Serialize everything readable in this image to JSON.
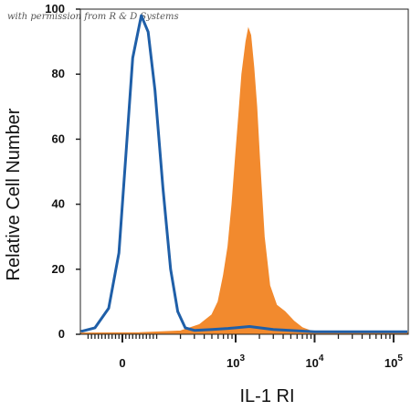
{
  "watermark": "with permission from R & D Systems",
  "chart_data": {
    "type": "area",
    "xlabel": "IL-1 RI",
    "ylabel": "Relative Cell Number",
    "xscale": "biexponential",
    "ylim": [
      0,
      100
    ],
    "y_ticks": [
      0,
      20,
      40,
      60,
      80,
      100
    ],
    "x_ticks": [
      {
        "base": "0",
        "exp": "",
        "value": 0
      },
      {
        "base": "10",
        "exp": "3",
        "value": 1000
      },
      {
        "base": "10",
        "exp": "4",
        "value": 10000
      },
      {
        "base": "10",
        "exp": "5",
        "value": 100000
      }
    ],
    "grid": false,
    "series": [
      {
        "style": "outline",
        "color": "#1f5fa8",
        "points": [
          [
            -800,
            0.8
          ],
          [
            -250,
            0.9
          ],
          [
            -80,
            2
          ],
          [
            -40,
            8
          ],
          [
            -10,
            25
          ],
          [
            10,
            55
          ],
          [
            30,
            85
          ],
          [
            55,
            98
          ],
          [
            75,
            93
          ],
          [
            95,
            75
          ],
          [
            120,
            45
          ],
          [
            150,
            20
          ],
          [
            185,
            7
          ],
          [
            230,
            2
          ],
          [
            300,
            1.2
          ],
          [
            500,
            1.5
          ],
          [
            800,
            1.8
          ],
          [
            1500,
            2.4
          ],
          [
            3000,
            1.5
          ],
          [
            10000,
            0.8
          ],
          [
            30000,
            0.8
          ],
          [
            100000,
            0.8
          ],
          [
            200000,
            0.8
          ]
        ]
      },
      {
        "style": "filled",
        "color": "#f28a2e",
        "points": [
          [
            -800,
            0.4
          ],
          [
            50,
            0.5
          ],
          [
            200,
            1
          ],
          [
            350,
            3
          ],
          [
            500,
            6
          ],
          [
            600,
            10
          ],
          [
            700,
            18
          ],
          [
            800,
            27
          ],
          [
            900,
            40
          ],
          [
            1000,
            55
          ],
          [
            1100,
            68
          ],
          [
            1200,
            80
          ],
          [
            1350,
            90
          ],
          [
            1450,
            94
          ],
          [
            1550,
            92
          ],
          [
            1700,
            82
          ],
          [
            1850,
            70
          ],
          [
            2000,
            55
          ],
          [
            2300,
            30
          ],
          [
            2700,
            15
          ],
          [
            3300,
            9
          ],
          [
            4200,
            7
          ],
          [
            5500,
            4
          ],
          [
            7000,
            2
          ],
          [
            9000,
            1
          ],
          [
            20000,
            0.5
          ],
          [
            200000,
            0.5
          ]
        ]
      }
    ]
  }
}
